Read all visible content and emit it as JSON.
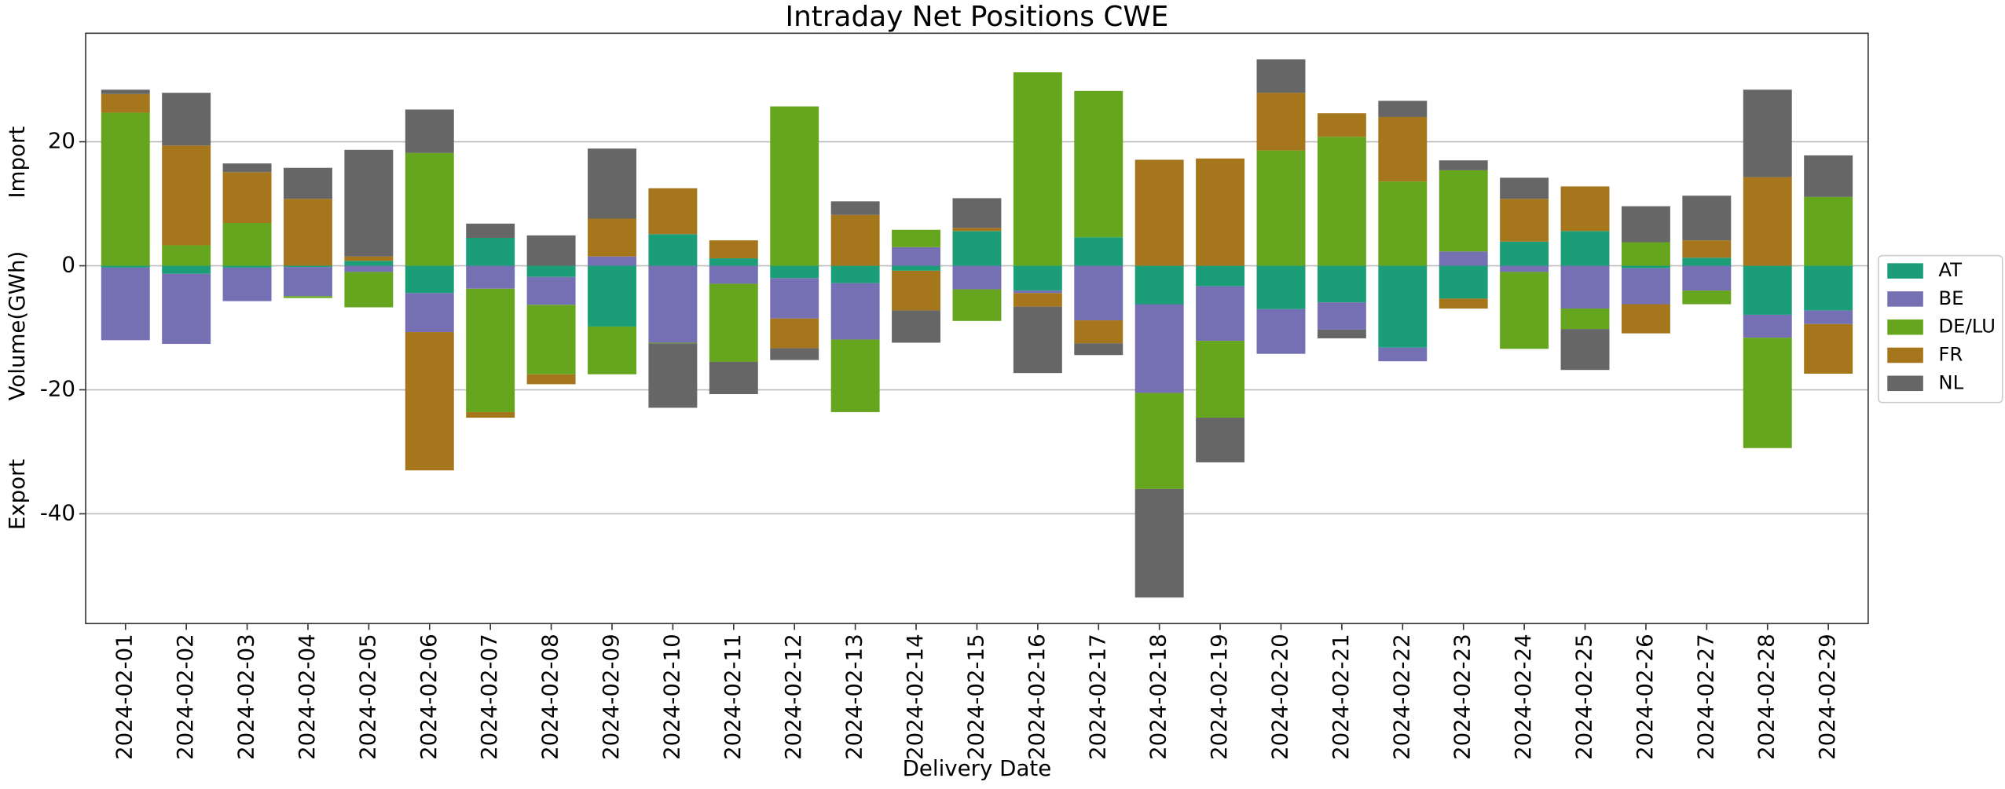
{
  "chart_data": {
    "type": "bar",
    "stacked": true,
    "title": "Intraday Net Positions CWE",
    "xlabel": "Delivery Date",
    "ylabel": "Volume(GWh)",
    "annotations": [
      "Import",
      "Export"
    ],
    "categories": [
      "2024-02-01",
      "2024-02-02",
      "2024-02-03",
      "2024-02-04",
      "2024-02-05",
      "2024-02-06",
      "2024-02-07",
      "2024-02-08",
      "2024-02-09",
      "2024-02-10",
      "2024-02-11",
      "2024-02-12",
      "2024-02-13",
      "2024-02-14",
      "2024-02-15",
      "2024-02-16",
      "2024-02-17",
      "2024-02-18",
      "2024-02-19",
      "2024-02-20",
      "2024-02-21",
      "2024-02-22",
      "2024-02-23",
      "2024-02-24",
      "2024-02-25",
      "2024-02-26",
      "2024-02-27",
      "2024-02-28",
      "2024-02-29"
    ],
    "series": [
      {
        "name": "AT",
        "color": "#1b9e77",
        "values": [
          -0.3,
          -1.3,
          -0.3,
          -0.2,
          0.8,
          -4.4,
          4.5,
          -1.8,
          -9.8,
          5.1,
          1.2,
          -2.0,
          -2.8,
          -0.8,
          5.6,
          -4.0,
          4.6,
          -6.2,
          -3.3,
          -7.0,
          -5.9,
          -13.2,
          -5.3,
          3.9,
          5.6,
          -0.4,
          1.3,
          -7.9,
          -7.2
        ]
      },
      {
        "name": "BE",
        "color": "#7570b3",
        "values": [
          -11.7,
          -11.3,
          -5.4,
          -4.7,
          -1.0,
          -6.3,
          -3.7,
          -4.5,
          1.5,
          -12.4,
          -2.9,
          -6.5,
          -9.1,
          3.0,
          -3.8,
          -0.4,
          -8.8,
          -14.3,
          -8.8,
          -7.2,
          -4.4,
          -2.2,
          2.3,
          -1.0,
          -6.9,
          -5.8,
          -4.0,
          -3.7,
          -2.2
        ]
      },
      {
        "name": "DE/LU",
        "color": "#66a61e",
        "values": [
          24.7,
          3.3,
          6.9,
          -0.3,
          -5.7,
          18.2,
          -19.9,
          -11.2,
          -7.7,
          -0.1,
          -12.6,
          25.7,
          -11.7,
          2.8,
          -5.1,
          31.2,
          23.6,
          -15.5,
          -12.4,
          18.6,
          20.8,
          13.6,
          13.1,
          -12.4,
          -3.3,
          3.8,
          -2.2,
          -17.8,
          11.1
        ]
      },
      {
        "name": "FR",
        "color": "#a6761d",
        "values": [
          3.0,
          16.1,
          8.2,
          10.8,
          0.7,
          -22.3,
          -0.9,
          -1.6,
          6.1,
          7.4,
          2.9,
          -4.8,
          8.2,
          -6.4,
          0.5,
          -2.2,
          -3.7,
          17.1,
          17.3,
          9.3,
          3.8,
          10.4,
          -1.6,
          6.9,
          7.2,
          -4.7,
          2.8,
          14.3,
          -8.0
        ]
      },
      {
        "name": "NL",
        "color": "#666666",
        "values": [
          0.7,
          8.5,
          1.4,
          5.0,
          17.2,
          7.0,
          2.3,
          4.9,
          11.3,
          -10.4,
          -5.2,
          -1.9,
          2.2,
          -5.2,
          4.8,
          -10.7,
          -1.9,
          -17.5,
          -7.2,
          5.4,
          -1.4,
          2.6,
          1.6,
          3.4,
          -6.6,
          5.8,
          7.2,
          14.1,
          6.7
        ]
      }
    ],
    "ylim": [
      -57.7,
      37.5
    ],
    "yticks": [
      -40,
      -20,
      0,
      20
    ],
    "grid": true,
    "legend": "right"
  }
}
